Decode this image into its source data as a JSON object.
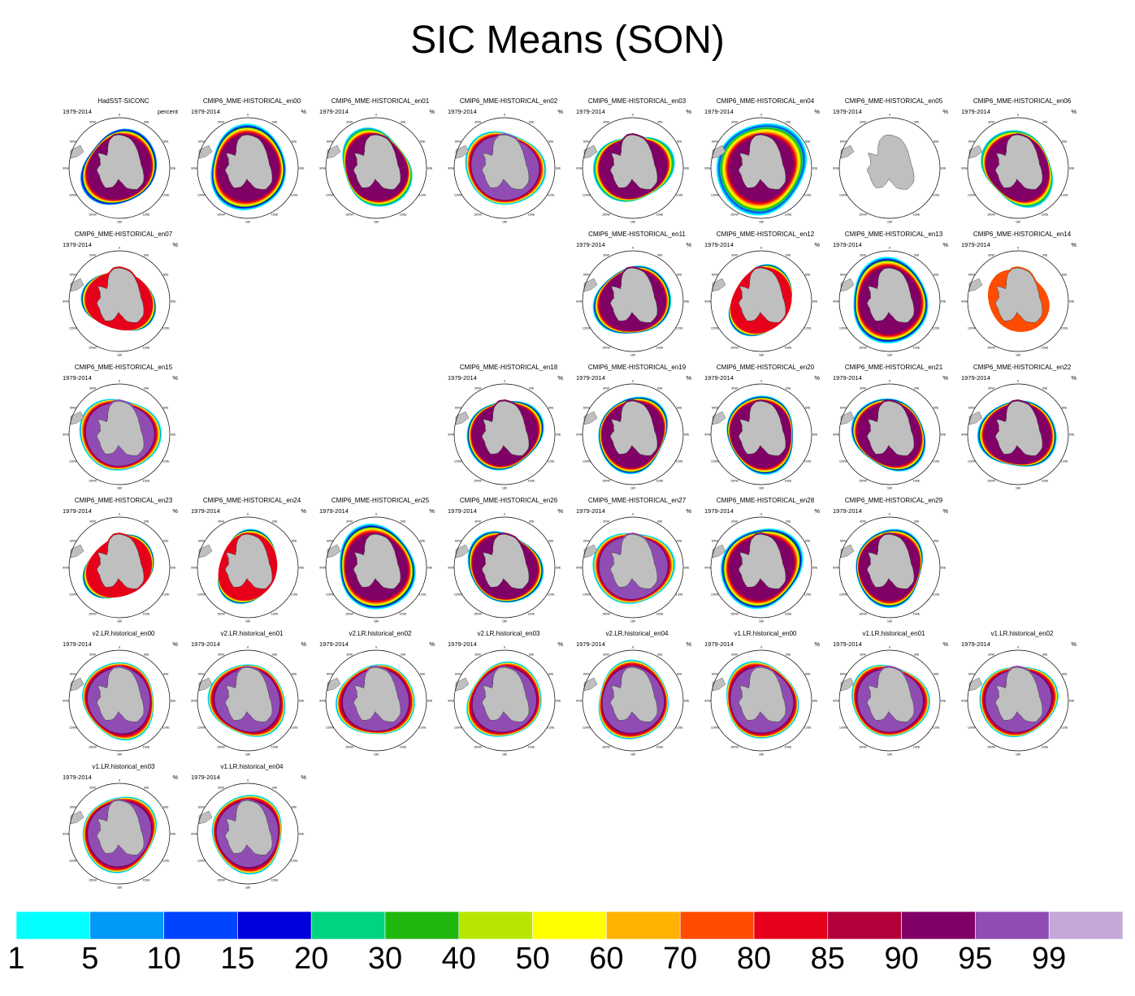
{
  "title": "SIC Means (SON)",
  "chart_data": {
    "type": "polar-map-panels",
    "projection": "south-polar-stereographic",
    "variable": "sea ice concentration",
    "units": "%",
    "period": "1979-2014",
    "longitude_labels": [
      "0",
      "30E",
      "60E",
      "90E",
      "120E",
      "150E",
      "180",
      "150W",
      "120W",
      "90W",
      "60W",
      "30W"
    ],
    "panels": [
      {
        "label": "HadSST-SICONC",
        "units": "percent",
        "row": 0,
        "col": 0,
        "style": "obs"
      },
      {
        "label": "CMIP6_MME-HISTORICAL_en00",
        "units": "%",
        "row": 0,
        "col": 1,
        "style": "wide"
      },
      {
        "label": "CMIP6_MME-HISTORICAL_en01",
        "units": "%",
        "row": 0,
        "col": 2,
        "style": "mixed"
      },
      {
        "label": "CMIP6_MME-HISTORICAL_en02",
        "units": "%",
        "row": 0,
        "col": 3,
        "style": "purple"
      },
      {
        "label": "CMIP6_MME-HISTORICAL_en03",
        "units": "%",
        "row": 0,
        "col": 4,
        "style": "mixed"
      },
      {
        "label": "CMIP6_MME-HISTORICAL_en04",
        "units": "%",
        "row": 0,
        "col": 5,
        "style": "huge"
      },
      {
        "label": "CMIP6_MME-HISTORICAL_en05",
        "units": "%",
        "row": 0,
        "col": 6,
        "style": "empty"
      },
      {
        "label": "CMIP6_MME-HISTORICAL_en06",
        "units": "%",
        "row": 0,
        "col": 7,
        "style": "mixed"
      },
      {
        "label": "CMIP6_MME-HISTORICAL_en07",
        "units": "%",
        "row": 1,
        "col": 0,
        "style": "low"
      },
      {
        "label": "CMIP6_MME-HISTORICAL_en11",
        "units": "%",
        "row": 1,
        "col": 4,
        "style": "normal"
      },
      {
        "label": "CMIP6_MME-HISTORICAL_en12",
        "units": "%",
        "row": 1,
        "col": 5,
        "style": "low"
      },
      {
        "label": "CMIP6_MME-HISTORICAL_en13",
        "units": "%",
        "row": 1,
        "col": 6,
        "style": "wide"
      },
      {
        "label": "CMIP6_MME-HISTORICAL_en14",
        "units": "%",
        "row": 1,
        "col": 7,
        "style": "thin"
      },
      {
        "label": "CMIP6_MME-HISTORICAL_en15",
        "units": "%",
        "row": 2,
        "col": 0,
        "style": "purple"
      },
      {
        "label": "CMIP6_MME-HISTORICAL_en18",
        "units": "%",
        "row": 2,
        "col": 3,
        "style": "normal"
      },
      {
        "label": "CMIP6_MME-HISTORICAL_en19",
        "units": "%",
        "row": 2,
        "col": 4,
        "style": "normal"
      },
      {
        "label": "CMIP6_MME-HISTORICAL_en20",
        "units": "%",
        "row": 2,
        "col": 5,
        "style": "normal"
      },
      {
        "label": "CMIP6_MME-HISTORICAL_en21",
        "units": "%",
        "row": 2,
        "col": 6,
        "style": "normal"
      },
      {
        "label": "CMIP6_MME-HISTORICAL_en22",
        "units": "%",
        "row": 2,
        "col": 7,
        "style": "normal"
      },
      {
        "label": "CMIP6_MME-HISTORICAL_en23",
        "units": "%",
        "row": 3,
        "col": 0,
        "style": "low"
      },
      {
        "label": "CMIP6_MME-HISTORICAL_en24",
        "units": "%",
        "row": 3,
        "col": 1,
        "style": "low"
      },
      {
        "label": "CMIP6_MME-HISTORICAL_en25",
        "units": "%",
        "row": 3,
        "col": 2,
        "style": "wide"
      },
      {
        "label": "CMIP6_MME-HISTORICAL_en26",
        "units": "%",
        "row": 3,
        "col": 3,
        "style": "normal"
      },
      {
        "label": "CMIP6_MME-HISTORICAL_en27",
        "units": "%",
        "row": 3,
        "col": 4,
        "style": "purple"
      },
      {
        "label": "CMIP6_MME-HISTORICAL_en28",
        "units": "%",
        "row": 3,
        "col": 5,
        "style": "wide"
      },
      {
        "label": "CMIP6_MME-HISTORICAL_en29",
        "units": "%",
        "row": 3,
        "col": 6,
        "style": "normal"
      },
      {
        "label": "v2.LR.historical_en00",
        "units": "%",
        "row": 4,
        "col": 0,
        "style": "e3sm"
      },
      {
        "label": "v2.LR.historical_en01",
        "units": "%",
        "row": 4,
        "col": 1,
        "style": "e3sm"
      },
      {
        "label": "v2.LR.historical_en02",
        "units": "%",
        "row": 4,
        "col": 2,
        "style": "e3sm"
      },
      {
        "label": "v2.LR.historical_en03",
        "units": "%",
        "row": 4,
        "col": 3,
        "style": "e3sm"
      },
      {
        "label": "v2.LR.historical_en04",
        "units": "%",
        "row": 4,
        "col": 4,
        "style": "e3sm"
      },
      {
        "label": "v1.LR.historical_en00",
        "units": "%",
        "row": 4,
        "col": 5,
        "style": "e3sm"
      },
      {
        "label": "v1.LR.historical_en01",
        "units": "%",
        "row": 4,
        "col": 6,
        "style": "e3sm"
      },
      {
        "label": "v1.LR.historical_en02",
        "units": "%",
        "row": 4,
        "col": 7,
        "style": "e3sm"
      },
      {
        "label": "v1.LR.historical_en03",
        "units": "%",
        "row": 5,
        "col": 0,
        "style": "e3sm"
      },
      {
        "label": "v1.LR.historical_en04",
        "units": "%",
        "row": 5,
        "col": 1,
        "style": "e3sm"
      }
    ],
    "colorbar": {
      "levels": [
        "1",
        "5",
        "10",
        "15",
        "20",
        "30",
        "40",
        "50",
        "60",
        "70",
        "80",
        "85",
        "90",
        "95",
        "99"
      ],
      "colors": [
        "#00ffff",
        "#0099f7",
        "#0044ff",
        "#0000dd",
        "#00d47f",
        "#21b80e",
        "#b8e600",
        "#ffff00",
        "#ffb300",
        "#ff4c00",
        "#e6001a",
        "#b3003b",
        "#800066",
        "#8f4db3",
        "#c4a8d9"
      ]
    }
  },
  "land_color": "#bfbfbf"
}
